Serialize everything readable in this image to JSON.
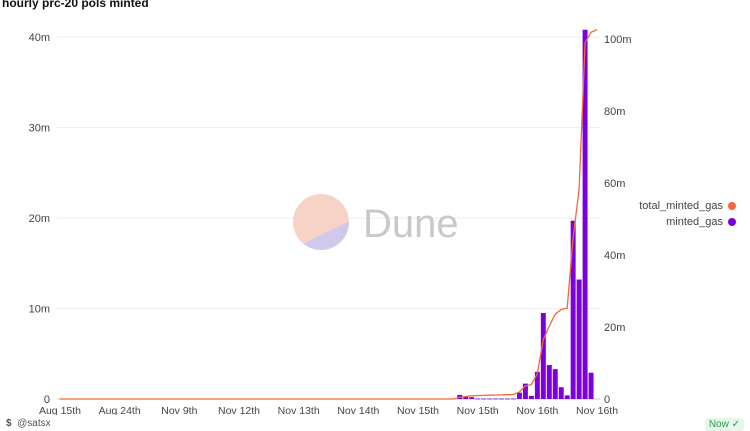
{
  "chart_data": {
    "type": "bar+line",
    "title": "hourly prc-20 pols minted",
    "x_tick_labels": [
      "Aug 15th",
      "Aug 24th",
      "Nov 9th",
      "Nov 12th",
      "Nov 13th",
      "Nov 14th",
      "Nov 15th",
      "Nov 15th",
      "Nov 16th",
      "Nov 16th"
    ],
    "left_axis": {
      "ticks": [
        "0",
        "10m",
        "20m",
        "30m",
        "40m"
      ],
      "range": [
        0,
        40000000
      ]
    },
    "right_axis": {
      "ticks": [
        "0",
        "20m",
        "40m",
        "60m",
        "80m",
        "100m"
      ],
      "range": [
        0,
        103000000
      ]
    },
    "grid": true,
    "legend_position": "right",
    "series": [
      {
        "name": "total_minted_gas",
        "type": "line",
        "axis": "right",
        "color": "#f4663b",
        "values": [
          0,
          0,
          0,
          0,
          0,
          0,
          0,
          0,
          0,
          0,
          0,
          0,
          0,
          0,
          0,
          0,
          0,
          0,
          0,
          0,
          0,
          0,
          0,
          0,
          0,
          0,
          0,
          0,
          0,
          0,
          0,
          0,
          0,
          0,
          0,
          0,
          0,
          0,
          0,
          0,
          0,
          0,
          0,
          0,
          0,
          0,
          0,
          0,
          0,
          0,
          0,
          0,
          0,
          0,
          0,
          0,
          0,
          0,
          0,
          0,
          0,
          0,
          0,
          0,
          0,
          0,
          0,
          450000,
          700000,
          900000,
          950000,
          1000000,
          1050000,
          1100000,
          1150000,
          1200000,
          1250000,
          1950000,
          3650000,
          4000000,
          7000000,
          16500000,
          20250000,
          23550000,
          24850000,
          25250000,
          44950000,
          58150000,
          98950000,
          101850000,
          102600000
        ]
      },
      {
        "name": "minted_gas",
        "type": "bar",
        "axis": "left",
        "color": "#7b00d9",
        "values": [
          0,
          0,
          0,
          0,
          0,
          0,
          0,
          0,
          0,
          0,
          0,
          0,
          0,
          0,
          0,
          0,
          0,
          0,
          0,
          0,
          0,
          0,
          0,
          0,
          0,
          0,
          0,
          0,
          0,
          0,
          0,
          0,
          0,
          0,
          0,
          0,
          0,
          0,
          0,
          0,
          0,
          0,
          0,
          0,
          0,
          0,
          0,
          0,
          0,
          0,
          0,
          0,
          0,
          0,
          0,
          0,
          0,
          0,
          0,
          0,
          0,
          0,
          0,
          0,
          0,
          0,
          0,
          450000,
          250000,
          200000,
          50000,
          50000,
          50000,
          50000,
          50000,
          50000,
          50000,
          700000,
          1700000,
          350000,
          3000000,
          9500000,
          3750000,
          3300000,
          1300000,
          400000,
          19700000,
          13200000,
          40800000,
          2900000,
          0
        ]
      }
    ]
  },
  "watermark": "Dune",
  "footer": {
    "user": "@satsx",
    "user_icon": "dollar-icon",
    "status": "Now",
    "status_icon": "check-circle-icon"
  }
}
